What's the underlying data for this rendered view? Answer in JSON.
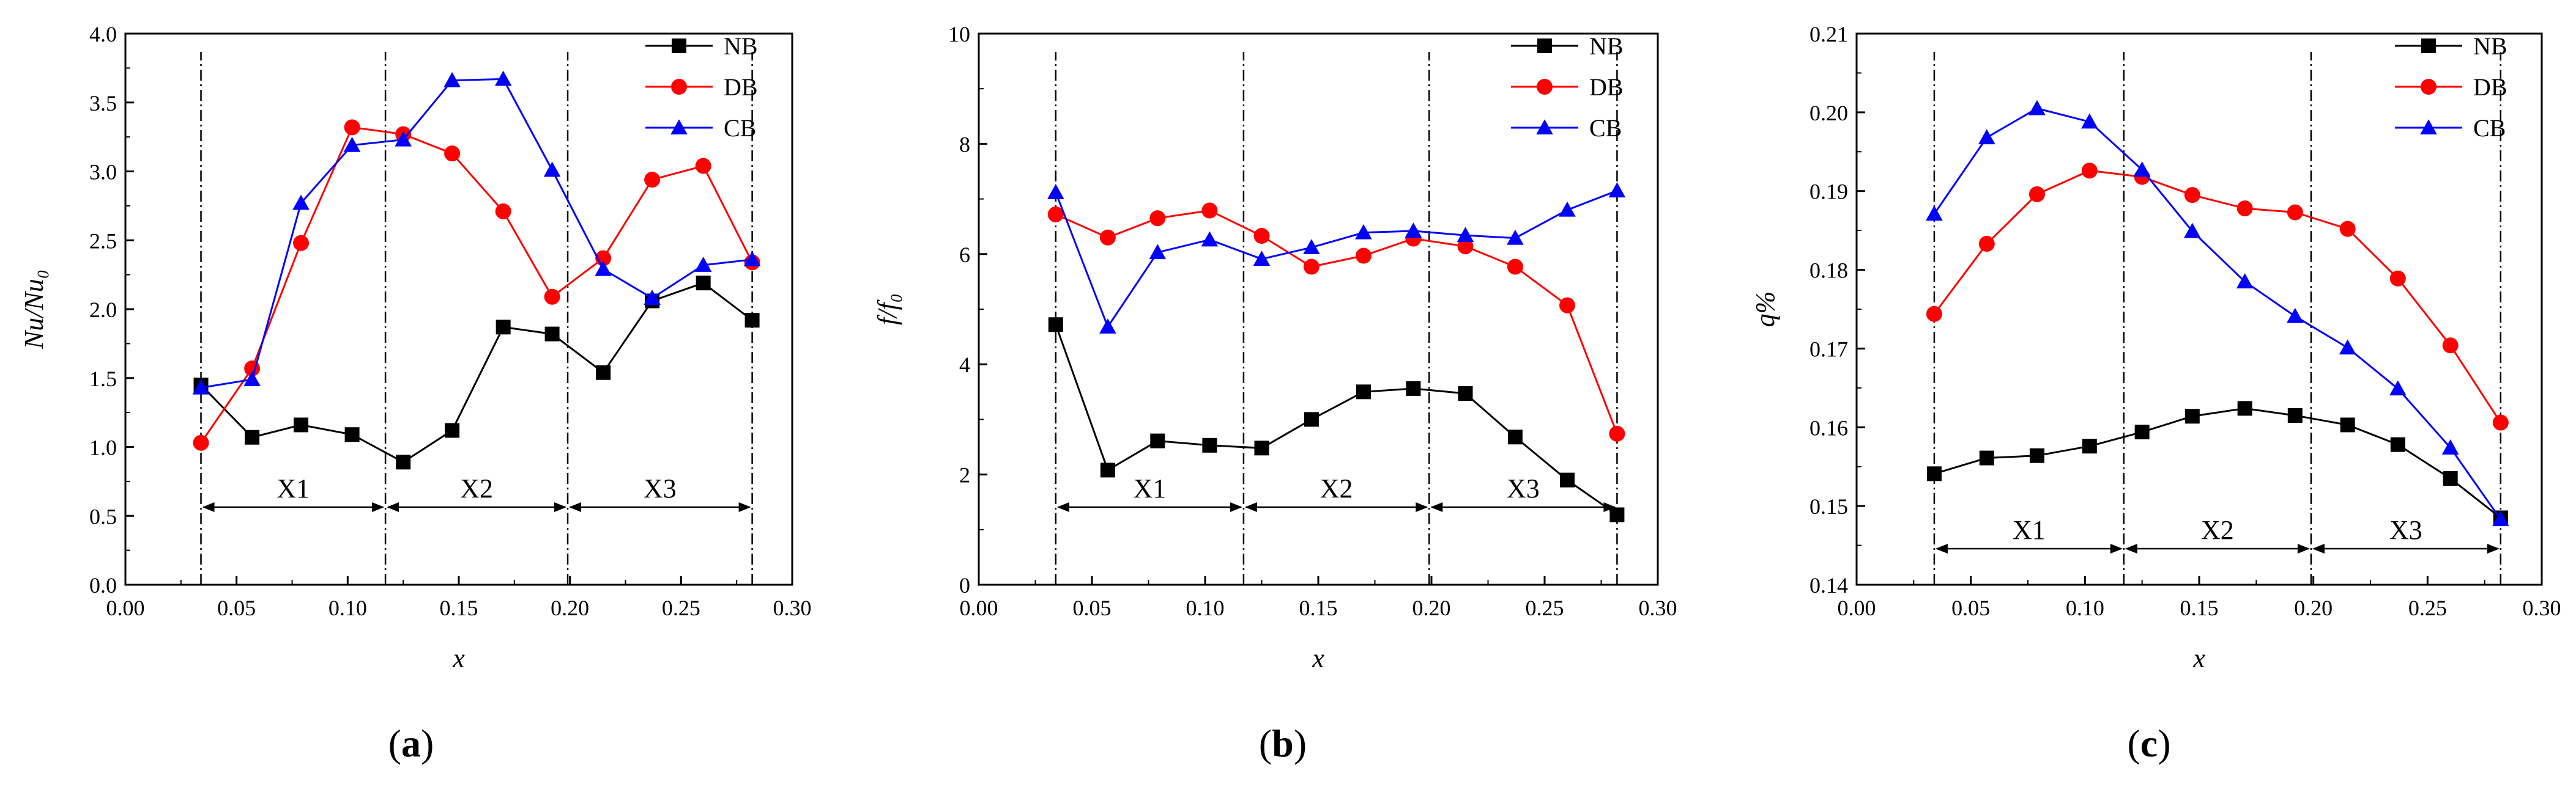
{
  "colors": {
    "NB": "#000000",
    "DB": "#ff0000",
    "CB": "#0000ff"
  },
  "chart_data": [
    {
      "type": "line",
      "panel": "a",
      "panel_label": "a",
      "ylabel": "Nu/Nu₀",
      "xlabel": "x",
      "xlim": [
        0.0,
        0.3
      ],
      "ylim": [
        0.0,
        4.0
      ],
      "xticks": [
        "0.00",
        "0.05",
        "0.10",
        "0.15",
        "0.20",
        "0.25",
        "0.30"
      ],
      "yticks": [
        "0.0",
        "0.5",
        "1.0",
        "1.5",
        "2.0",
        "2.5",
        "3.0",
        "3.5",
        "4.0"
      ],
      "x": [
        0.034,
        0.057,
        0.079,
        0.102,
        0.125,
        0.147,
        0.17,
        0.192,
        0.215,
        0.237,
        0.26,
        0.282
      ],
      "series": [
        {
          "name": "NB",
          "marker": "square",
          "values": [
            1.45,
            1.07,
            1.16,
            1.09,
            0.89,
            1.12,
            1.87,
            1.82,
            1.54,
            2.06,
            2.19,
            1.92
          ]
        },
        {
          "name": "DB",
          "marker": "circle",
          "values": [
            1.03,
            1.57,
            2.48,
            3.32,
            3.27,
            3.13,
            2.71,
            2.09,
            2.37,
            2.94,
            3.04,
            2.34
          ]
        },
        {
          "name": "CB",
          "marker": "triangle",
          "values": [
            1.43,
            1.49,
            2.77,
            3.19,
            3.23,
            3.66,
            3.67,
            3.01,
            2.29,
            2.08,
            2.32,
            2.36
          ]
        }
      ],
      "zones": [
        {
          "label": "X1",
          "from": 0.034,
          "to": 0.117
        },
        {
          "label": "X2",
          "from": 0.117,
          "to": 0.199
        },
        {
          "label": "X3",
          "from": 0.199,
          "to": 0.282
        }
      ],
      "legend": [
        "NB",
        "DB",
        "CB"
      ],
      "legend_position": "top-right"
    },
    {
      "type": "line",
      "panel": "b",
      "panel_label": "b",
      "ylabel": "f/f₀",
      "xlabel": "x",
      "xlim": [
        0.0,
        0.3
      ],
      "ylim": [
        0,
        10
      ],
      "xticks": [
        "0.00",
        "0.05",
        "0.10",
        "0.15",
        "0.20",
        "0.25",
        "0.30"
      ],
      "yticks": [
        "0",
        "2",
        "4",
        "6",
        "8",
        "10"
      ],
      "x": [
        0.034,
        0.057,
        0.079,
        0.102,
        0.125,
        0.147,
        0.17,
        0.192,
        0.215,
        0.237,
        0.26,
        0.282
      ],
      "series": [
        {
          "name": "NB",
          "marker": "square",
          "values": [
            4.72,
            2.08,
            2.61,
            2.53,
            2.48,
            3.0,
            3.5,
            3.56,
            3.47,
            2.68,
            1.9,
            1.27
          ]
        },
        {
          "name": "DB",
          "marker": "circle",
          "values": [
            6.72,
            6.3,
            6.65,
            6.79,
            6.33,
            5.77,
            5.97,
            6.28,
            6.14,
            5.77,
            5.07,
            2.74
          ]
        },
        {
          "name": "CB",
          "marker": "triangle",
          "values": [
            7.12,
            4.68,
            6.03,
            6.26,
            5.91,
            6.12,
            6.39,
            6.42,
            6.34,
            6.29,
            6.8,
            7.15
          ]
        }
      ],
      "zones": [
        {
          "label": "X1",
          "from": 0.034,
          "to": 0.117
        },
        {
          "label": "X2",
          "from": 0.117,
          "to": 0.199
        },
        {
          "label": "X3",
          "from": 0.199,
          "to": 0.282
        }
      ],
      "legend": [
        "NB",
        "DB",
        "CB"
      ],
      "legend_position": "top-right"
    },
    {
      "type": "line",
      "panel": "c",
      "panel_label": "c",
      "ylabel": "q%",
      "xlabel": "x",
      "xlim": [
        0.0,
        0.3
      ],
      "ylim": [
        0.14,
        0.21
      ],
      "xticks": [
        "0.00",
        "0.05",
        "0.10",
        "0.15",
        "0.20",
        "0.25",
        "0.30"
      ],
      "yticks": [
        "0.14",
        "0.15",
        "0.16",
        "0.17",
        "0.18",
        "0.19",
        "0.20",
        "0.21"
      ],
      "x": [
        0.034,
        0.057,
        0.079,
        0.102,
        0.125,
        0.147,
        0.17,
        0.192,
        0.215,
        0.237,
        0.26,
        0.282
      ],
      "series": [
        {
          "name": "NB",
          "marker": "square",
          "values": [
            0.1541,
            0.1561,
            0.1564,
            0.1576,
            0.1594,
            0.1614,
            0.1624,
            0.1615,
            0.1603,
            0.1578,
            0.1535,
            0.1485
          ]
        },
        {
          "name": "DB",
          "marker": "circle",
          "values": [
            0.1744,
            0.1833,
            0.1896,
            0.1926,
            0.1918,
            0.1895,
            0.1878,
            0.1873,
            0.1852,
            0.1789,
            0.1704,
            0.1606
          ]
        },
        {
          "name": "CB",
          "marker": "triangle",
          "values": [
            0.1871,
            0.1968,
            0.2005,
            0.1988,
            0.1927,
            0.1849,
            0.1785,
            0.1741,
            0.1701,
            0.1649,
            0.1574,
            0.1483
          ]
        }
      ],
      "zones": [
        {
          "label": "X1",
          "from": 0.034,
          "to": 0.117
        },
        {
          "label": "X2",
          "from": 0.117,
          "to": 0.199
        },
        {
          "label": "X3",
          "from": 0.199,
          "to": 0.282
        }
      ],
      "legend": [
        "NB",
        "DB",
        "CB"
      ],
      "legend_position": "top-right"
    }
  ]
}
